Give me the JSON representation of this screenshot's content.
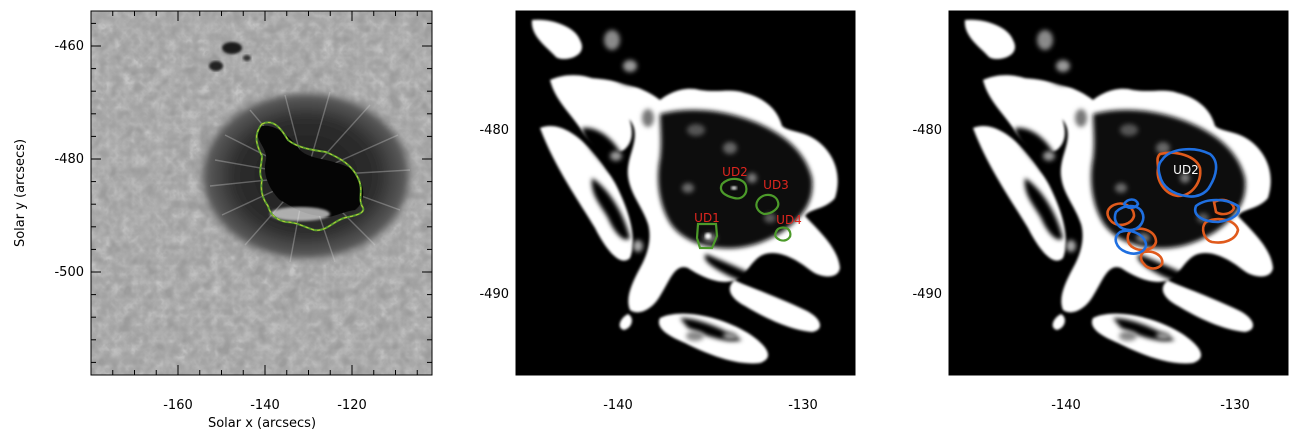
{
  "panels": [
    {
      "id": "continuum",
      "xlabel": "Solar x (arcsecs)",
      "ylabel": "Solar y (arcsecs)",
      "xticks": [
        "-160",
        "-140",
        "-120"
      ],
      "yticks": [
        "-460",
        "-480",
        "-500"
      ],
      "contour_colors": [
        "#5a9e2f",
        "#c9d43a"
      ]
    },
    {
      "id": "umbra-green",
      "xlabel": "",
      "ylabel": "",
      "xticks": [
        "-140",
        "-130"
      ],
      "yticks": [
        "-480",
        "-490"
      ],
      "labels": [
        {
          "text": "UD1",
          "color": "#e0261f"
        },
        {
          "text": "UD2",
          "color": "#e0261f"
        },
        {
          "text": "UD3",
          "color": "#e0261f"
        },
        {
          "text": "UD4",
          "color": "#e0261f"
        }
      ],
      "contour_color": "#4c9a2a"
    },
    {
      "id": "umbra-blue-orange",
      "xlabel": "",
      "ylabel": "",
      "xticks": [
        "-140",
        "-130"
      ],
      "yticks": [
        "-480",
        "-490"
      ],
      "labels": [
        {
          "text": "UD2",
          "color": "#ffffff"
        }
      ],
      "contour_colors": [
        "#1f6fe0",
        "#e05a1c"
      ]
    }
  ]
}
